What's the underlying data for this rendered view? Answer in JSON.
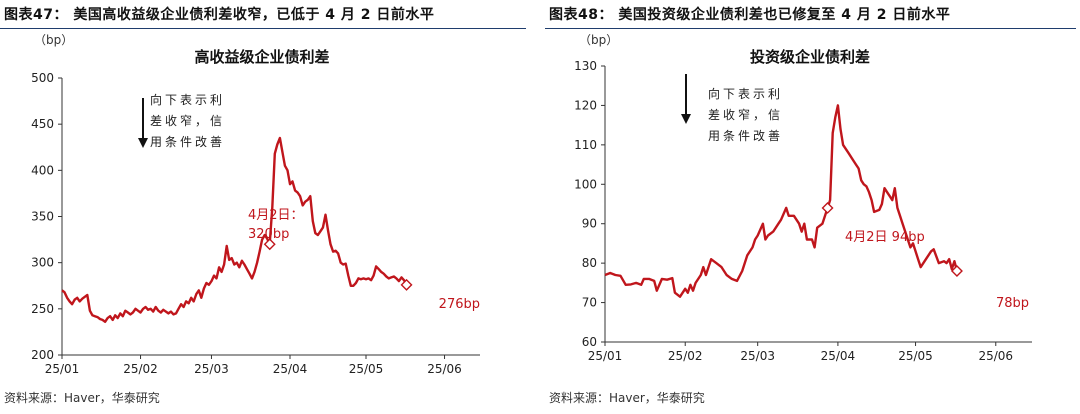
{
  "colors": {
    "line": "#c0161c",
    "axis": "#333333",
    "title_rule": "#1f3d6d"
  },
  "panels": [
    {
      "figure_title": "图表47：  美国高收益级企业债利差收窄，已低于 4 月 2 日前水平",
      "source": "资料来源：Haver，华泰研究",
      "chart_data": {
        "type": "line",
        "title": "高收益级企业债利差",
        "ylabel": "（bp）",
        "ylim": [
          200,
          500
        ],
        "yticks": [
          "200",
          "250",
          "300",
          "350",
          "400",
          "450",
          "500"
        ],
        "xticks": [
          "25/01",
          "25/02",
          "25/03",
          "25/04",
          "25/05",
          "25/06"
        ],
        "xtick_values": [
          0,
          31,
          59,
          90,
          120,
          151
        ],
        "xlim": [
          0,
          165
        ],
        "series": [
          {
            "points": [
              [
                0,
                270
              ],
              [
                1,
                268
              ],
              [
                2,
                262
              ],
              [
                3,
                258
              ],
              [
                4,
                255
              ],
              [
                5,
                260
              ],
              [
                6,
                262
              ],
              [
                7,
                258
              ],
              [
                8,
                261
              ],
              [
                9,
                263
              ],
              [
                10,
                265
              ],
              [
                11,
                248
              ],
              [
                12,
                243
              ],
              [
                13,
                242
              ],
              [
                14,
                241
              ],
              [
                15,
                239
              ],
              [
                16,
                238
              ],
              [
                17,
                236
              ],
              [
                18,
                240
              ],
              [
                19,
                242
              ],
              [
                20,
                238
              ],
              [
                21,
                243
              ],
              [
                22,
                240
              ],
              [
                23,
                245
              ],
              [
                24,
                242
              ],
              [
                25,
                248
              ],
              [
                26,
                246
              ],
              [
                27,
                244
              ],
              [
                28,
                246
              ],
              [
                29,
                250
              ],
              [
                30,
                248
              ],
              [
                31,
                246
              ],
              [
                32,
                250
              ],
              [
                33,
                252
              ],
              [
                34,
                249
              ],
              [
                35,
                250
              ],
              [
                36,
                247
              ],
              [
                37,
                252
              ],
              [
                38,
                248
              ],
              [
                39,
                246
              ],
              [
                40,
                249
              ],
              [
                41,
                247
              ],
              [
                42,
                245
              ],
              [
                43,
                247
              ],
              [
                44,
                244
              ],
              [
                45,
                245
              ],
              [
                46,
                250
              ],
              [
                47,
                255
              ],
              [
                48,
                252
              ],
              [
                49,
                258
              ],
              [
                50,
                256
              ],
              [
                51,
                262
              ],
              [
                52,
                258
              ],
              [
                53,
                266
              ],
              [
                54,
                270
              ],
              [
                55,
                262
              ],
              [
                56,
                272
              ],
              [
                57,
                278
              ],
              [
                58,
                276
              ],
              [
                59,
                280
              ],
              [
                60,
                286
              ],
              [
                61,
                283
              ],
              [
                62,
                295
              ],
              [
                63,
                290
              ],
              [
                64,
                298
              ],
              [
                65,
                318
              ],
              [
                66,
                303
              ],
              [
                67,
                305
              ],
              [
                68,
                298
              ],
              [
                69,
                300
              ],
              [
                70,
                295
              ],
              [
                71,
                302
              ],
              [
                72,
                298
              ],
              [
                73,
                293
              ],
              [
                74,
                288
              ],
              [
                75,
                283
              ],
              [
                76,
                290
              ],
              [
                77,
                300
              ],
              [
                78,
                312
              ],
              [
                79,
                325
              ],
              [
                80,
                330
              ],
              [
                81,
                326
              ],
              [
                82,
                320
              ],
              [
                83,
                360
              ],
              [
                84,
                418
              ],
              [
                85,
                428
              ],
              [
                86,
                435
              ],
              [
                87,
                420
              ],
              [
                88,
                405
              ],
              [
                89,
                400
              ],
              [
                90,
                385
              ],
              [
                91,
                388
              ],
              [
                92,
                378
              ],
              [
                93,
                376
              ],
              [
                94,
                372
              ],
              [
                95,
                362
              ],
              [
                96,
                366
              ],
              [
                97,
                368
              ],
              [
                98,
                372
              ],
              [
                99,
                345
              ],
              [
                100,
                332
              ],
              [
                101,
                330
              ],
              [
                102,
                334
              ],
              [
                103,
                338
              ],
              [
                104,
                352
              ],
              [
                105,
                335
              ],
              [
                106,
                320
              ],
              [
                107,
                312
              ],
              [
                108,
                313
              ],
              [
                109,
                310
              ],
              [
                110,
                300
              ],
              [
                111,
                298
              ],
              [
                112,
                299
              ],
              [
                113,
                286
              ],
              [
                114,
                275
              ],
              [
                115,
                275
              ],
              [
                116,
                278
              ],
              [
                117,
                283
              ],
              [
                118,
                282
              ],
              [
                119,
                283
              ],
              [
                120,
                282
              ],
              [
                121,
                283
              ],
              [
                122,
                281
              ],
              [
                123,
                286
              ],
              [
                124,
                296
              ],
              [
                125,
                293
              ],
              [
                126,
                290
              ],
              [
                127,
                288
              ],
              [
                128,
                285
              ],
              [
                129,
                283
              ],
              [
                130,
                284
              ],
              [
                131,
                285
              ],
              [
                132,
                283
              ],
              [
                133,
                280
              ],
              [
                134,
                284
              ],
              [
                135,
                281
              ],
              [
                136,
                276
              ]
            ]
          }
        ],
        "annotations": [
          {
            "text_lines": [
              "向下表示利",
              "差收窄，信",
              "用条件改善"
            ],
            "arrow": "down"
          },
          {
            "text_lines": [
              "4月2日：",
              "320bp"
            ],
            "marker_x": 82,
            "marker_y": 320
          },
          {
            "text_lines": [
              "276bp"
            ],
            "marker_x": 136,
            "marker_y": 276
          }
        ]
      }
    },
    {
      "figure_title": "图表48：  美国投资级企业债利差也已修复至 4 月 2 日前水平",
      "source": "资料来源：Haver，华泰研究",
      "chart_data": {
        "type": "line",
        "title": "投资级企业债利差",
        "ylabel": "（bp）",
        "ylim": [
          60,
          130
        ],
        "yticks": [
          "60",
          "70",
          "80",
          "90",
          "100",
          "110",
          "120",
          "130"
        ],
        "xticks": [
          "25/01",
          "25/02",
          "25/03",
          "25/04",
          "25/05",
          "25/06"
        ],
        "xtick_values": [
          0,
          31,
          59,
          90,
          120,
          151
        ],
        "xlim": [
          0,
          165
        ],
        "series": [
          {
            "points": [
              [
                0,
                77
              ],
              [
                2,
                77.5
              ],
              [
                4,
                77
              ],
              [
                6,
                76.8
              ],
              [
                8,
                74.5
              ],
              [
                10,
                74.6
              ],
              [
                12,
                75
              ],
              [
                14,
                74.5
              ],
              [
                15,
                76
              ],
              [
                17,
                76
              ],
              [
                19,
                75.5
              ],
              [
                20,
                73
              ],
              [
                22,
                76
              ],
              [
                24,
                75.8
              ],
              [
                26,
                76.2
              ],
              [
                27,
                72.5
              ],
              [
                29,
                71.5
              ],
              [
                31,
                73.5
              ],
              [
                32,
                72.5
              ],
              [
                33,
                74.5
              ],
              [
                34,
                73
              ],
              [
                35,
                75
              ],
              [
                37,
                77
              ],
              [
                38,
                79
              ],
              [
                39,
                77
              ],
              [
                41,
                81
              ],
              [
                43,
                80
              ],
              [
                45,
                79
              ],
              [
                47,
                77
              ],
              [
                49,
                76
              ],
              [
                51,
                75.5
              ],
              [
                53,
                78
              ],
              [
                55,
                82
              ],
              [
                57,
                84
              ],
              [
                58,
                86
              ],
              [
                59,
                87
              ],
              [
                61,
                90
              ],
              [
                62,
                86
              ],
              [
                63,
                87
              ],
              [
                65,
                88
              ],
              [
                67,
                90
              ],
              [
                68,
                91
              ],
              [
                70,
                94
              ],
              [
                71,
                92
              ],
              [
                73,
                92
              ],
              [
                75,
                90
              ],
              [
                76,
                88
              ],
              [
                77,
                90
              ],
              [
                78,
                86
              ],
              [
                80,
                86
              ],
              [
                81,
                84
              ],
              [
                82,
                89
              ],
              [
                84,
                90
              ],
              [
                86,
                94
              ],
              [
                87,
                96
              ],
              [
                88,
                113
              ],
              [
                89,
                117
              ],
              [
                90,
                120
              ],
              [
                91,
                114
              ],
              [
                92,
                110
              ],
              [
                94,
                108
              ],
              [
                96,
                106
              ],
              [
                97,
                105
              ],
              [
                98,
                104
              ],
              [
                99,
                101
              ],
              [
                100,
                100
              ],
              [
                101,
                99.5
              ],
              [
                102,
                98
              ],
              [
                103,
                96
              ],
              [
                104,
                93
              ],
              [
                106,
                93.5
              ],
              [
                107,
                95
              ],
              [
                108,
                99
              ],
              [
                109,
                98
              ],
              [
                110,
                97
              ],
              [
                111,
                96
              ],
              [
                112,
                99
              ],
              [
                113,
                94
              ],
              [
                114,
                92
              ],
              [
                115,
                90
              ],
              [
                117,
                86
              ],
              [
                118,
                84
              ],
              [
                119,
                85
              ],
              [
                121,
                81
              ],
              [
                122,
                79
              ],
              [
                124,
                81
              ],
              [
                126,
                83
              ],
              [
                127,
                83.5
              ],
              [
                129,
                80
              ],
              [
                131,
                80.5
              ],
              [
                132,
                80
              ],
              [
                133,
                81
              ],
              [
                134,
                78.5
              ],
              [
                135,
                80.5
              ],
              [
                136,
                78
              ]
            ]
          }
        ],
        "annotations": [
          {
            "text_lines": [
              "向下表示利",
              "差收窄，信",
              "用条件改善"
            ],
            "arrow": "down"
          },
          {
            "text_lines": [
              "4月2日 94bp"
            ],
            "marker_x": 86,
            "marker_y": 94
          },
          {
            "text_lines": [
              "78bp"
            ],
            "marker_x": 136,
            "marker_y": 78
          }
        ]
      }
    }
  ]
}
